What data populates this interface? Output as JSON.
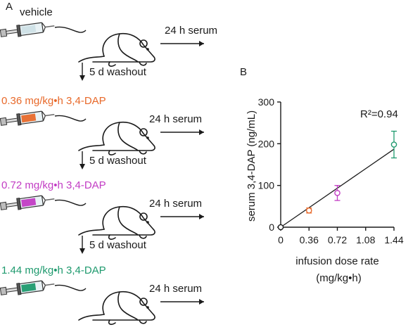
{
  "panel_a": {
    "label": "A",
    "steps": [
      {
        "label": "vehicle",
        "color": "#1a1a1a",
        "syringe_fill": "#cfe0e6",
        "sample": "24 h serum",
        "washout": "5 d washout"
      },
      {
        "label": "0.36 mg/kg•h 3,4-DAP",
        "color": "#e8692a",
        "syringe_fill": "#e8692a",
        "sample": "24 h serum",
        "washout": "5 d washout"
      },
      {
        "label": "0.72 mg/kg•h 3,4-DAP",
        "color": "#c23cc4",
        "syringe_fill": "#c23cc4",
        "sample": "24 h serum",
        "washout": "5 d washout"
      },
      {
        "label": "1.44 mg/kg•h 3,4-DAP",
        "color": "#1f9a6e",
        "syringe_fill": "#1f9a6e",
        "sample": "24 h serum"
      }
    ],
    "icons": [
      "syringe-icon",
      "mouse-icon",
      "right-arrow-icon",
      "down-arrow-icon"
    ]
  },
  "panel_b": {
    "label": "B",
    "r_squared": "R²=0.94"
  },
  "chart_data": {
    "type": "scatter",
    "title": "",
    "xlabel": "infusion dose rate",
    "xlabel_unit": "(mg/kg•h)",
    "ylabel": "serum 3,4-DAP (ng/mL)",
    "xlim": [
      0,
      1.44
    ],
    "ylim": [
      0,
      300
    ],
    "xticks": [
      "0",
      "0.36",
      "0.72",
      "1.08",
      "1.44"
    ],
    "xtick_values": [
      0,
      0.36,
      0.72,
      1.08,
      1.44
    ],
    "yticks": [
      "0",
      "100",
      "200",
      "300"
    ],
    "ytick_values": [
      0,
      100,
      200,
      300
    ],
    "grid": false,
    "points": [
      {
        "x": 0,
        "y": 0,
        "err": 0,
        "color": "#1a1a1a"
      },
      {
        "x": 0.36,
        "y": 40,
        "err": 6,
        "color": "#e8692a"
      },
      {
        "x": 0.72,
        "y": 82,
        "err": 18,
        "color": "#c23cc4"
      },
      {
        "x": 1.44,
        "y": 198,
        "err": 32,
        "color": "#1f9a6e"
      }
    ],
    "fit_line": {
      "x": [
        0,
        1.44
      ],
      "y": [
        0,
        187
      ]
    },
    "annotation": "R²=0.94"
  }
}
